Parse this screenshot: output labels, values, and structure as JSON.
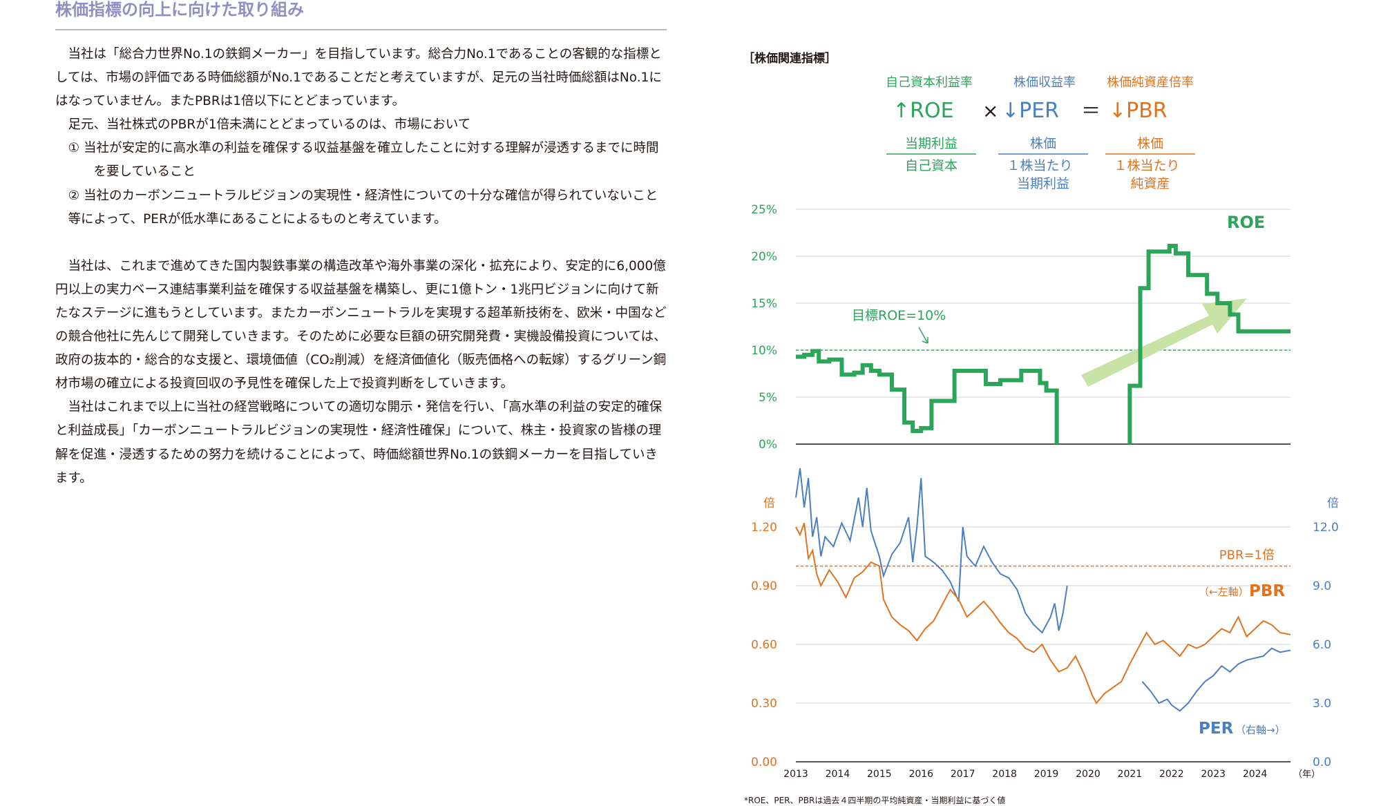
{
  "heading": "株価指標の向上に向けた取り組み",
  "paragraphs": {
    "p1": "当社は「総合力世界No.1の鉄鋼メーカー」を目指しています。総合力No.1であることの客観的な指標としては、市場の評価である時価総額がNo.1であることだと考えていますが、足元の当社時価総額はNo.1にはなっていません。またPBRは1倍以下にとどまっています。",
    "p2": "足元、当社株式のPBRが1倍未満にとどまっているのは、市場において",
    "item1": "① 当社が安定的に高水準の利益を確保する収益基盤を確立したことに対する理解が浸透するまでに時間を要していること",
    "item2": "② 当社のカーボンニュートラルビジョンの実現性・経済性についての十分な確信が得られていないこと",
    "p3": "等によって、PERが低水準にあることによるものと考えています。",
    "p4": "当社は、これまで進めてきた国内製鉄事業の構造改革や海外事業の深化・拡充により、安定的に6,000億円以上の実力ベース連結事業利益を確保する収益基盤を構築し、更に1億トン・1兆円ビジョンに向けて新たなステージに進もうとしています。またカーボンニュートラルを実現する超革新技術を、欧米・中国などの競合他社に先んじて開発していきます。そのために必要な巨額の研究開発費・実機設備投資については、政府の抜本的・総合的な支援と、環境価値（CO₂削減）を経済価値化（販売価格への転嫁）するグリーン鋼材市場の確立による投資回収の予見性を確保した上で投資判断をしていきます。",
    "p5": "当社はこれまで以上に当社の経営戦略についての適切な開示・発信を行い、「高水準の利益の安定的確保と利益成長」「カーボンニュートラルビジョンの実現性・経済性確保」について、株主・投資家の皆様の理解を促進・浸透するための努力を続けることによって、時価総額世界No.1の鉄鋼メーカーを目指していきます。"
  },
  "panel_label": "［株価関連指標］",
  "formula": {
    "roe_title": "自己資本利益率",
    "per_title": "株価収益率",
    "pbr_title": "株価純資産倍率",
    "roe": "↑ROE",
    "times": "×",
    "per": "↓PER",
    "equals": "＝",
    "pbr": "↓PBR",
    "roe_num": "当期利益",
    "roe_den": "自己資本",
    "per_num": "株価",
    "per_den_1": "１株当たり",
    "per_den_2": "当期利益",
    "pbr_num": "株価",
    "pbr_den_1": "１株当たり",
    "pbr_den_2": "純資産"
  },
  "colors": {
    "roe": "#2ca55a",
    "per": "#4a7fc1",
    "pbr": "#e2731e",
    "arrow": "#c9e3a6",
    "grid": "#d0d0d0",
    "axis": "#231815"
  },
  "chart_data": [
    {
      "type": "line",
      "series_name": "ROE",
      "y_ticks": [
        "25%",
        "20%",
        "15%",
        "10%",
        "5%",
        "0%"
      ],
      "ylim": [
        0,
        25
      ],
      "x_range": [
        2013.0,
        2024.85
      ],
      "target_label": "目標ROE=10%",
      "target_value": 10,
      "step_points": [
        [
          2013.0,
          9.3
        ],
        [
          2013.2,
          9.5
        ],
        [
          2013.4,
          9.9
        ],
        [
          2013.55,
          8.8
        ],
        [
          2013.8,
          9.0
        ],
        [
          2014.1,
          7.4
        ],
        [
          2014.4,
          7.6
        ],
        [
          2014.6,
          8.4
        ],
        [
          2014.8,
          7.8
        ],
        [
          2015.0,
          7.4
        ],
        [
          2015.3,
          5.8
        ],
        [
          2015.6,
          2.3
        ],
        [
          2015.8,
          1.4
        ],
        [
          2016.0,
          1.7
        ],
        [
          2016.25,
          4.6
        ],
        [
          2016.8,
          7.8
        ],
        [
          2017.55,
          6.4
        ],
        [
          2017.9,
          6.8
        ],
        [
          2018.4,
          7.8
        ],
        [
          2018.85,
          6.5
        ],
        [
          2019.0,
          5.7
        ],
        [
          2019.25,
          0.0
        ],
        [
          2021.0,
          6.2
        ],
        [
          2021.25,
          16.6
        ],
        [
          2021.45,
          20.5
        ],
        [
          2021.95,
          21.1
        ],
        [
          2022.1,
          20.3
        ],
        [
          2022.4,
          18.0
        ],
        [
          2022.85,
          16.0
        ],
        [
          2023.1,
          15.0
        ],
        [
          2023.4,
          13.8
        ],
        [
          2023.6,
          12.0
        ],
        [
          2024.85,
          12.0
        ]
      ]
    },
    {
      "type": "line",
      "left_axis_label": "倍",
      "right_axis_label": "倍",
      "left_ticks": [
        "1.20",
        "0.90",
        "0.60",
        "0.30",
        "0.00"
      ],
      "right_ticks": [
        "12.0",
        "9.0",
        "6.0",
        "3.0",
        "0.0"
      ],
      "left_ylim": [
        0,
        1.5
      ],
      "right_ylim": [
        0,
        15
      ],
      "x_tick_labels": [
        "2013",
        "2014",
        "2015",
        "2016",
        "2017",
        "2018",
        "2019",
        "2020",
        "2021",
        "2022",
        "2023",
        "2024"
      ],
      "x_unit": "（年）",
      "pbr_ref_label": "PBR=1倍",
      "pbr_ref_value": 1.0,
      "pbr_label": "PBR",
      "pbr_axis_note": "（←左軸）",
      "per_label": "PER",
      "per_axis_note": "（右軸→）",
      "series": [
        {
          "name": "PBR",
          "axis": "left",
          "points": [
            [
              2013.0,
              1.2
            ],
            [
              2013.1,
              1.16
            ],
            [
              2013.2,
              1.22
            ],
            [
              2013.3,
              1.04
            ],
            [
              2013.4,
              1.08
            ],
            [
              2013.5,
              0.96
            ],
            [
              2013.6,
              0.9
            ],
            [
              2013.8,
              0.98
            ],
            [
              2014.0,
              0.92
            ],
            [
              2014.2,
              0.84
            ],
            [
              2014.4,
              0.94
            ],
            [
              2014.6,
              0.97
            ],
            [
              2014.8,
              1.02
            ],
            [
              2015.0,
              1.0
            ],
            [
              2015.1,
              0.83
            ],
            [
              2015.3,
              0.74
            ],
            [
              2015.5,
              0.7
            ],
            [
              2015.7,
              0.67
            ],
            [
              2015.9,
              0.62
            ],
            [
              2016.1,
              0.68
            ],
            [
              2016.3,
              0.72
            ],
            [
              2016.5,
              0.8
            ],
            [
              2016.7,
              0.88
            ],
            [
              2016.9,
              0.83
            ],
            [
              2017.1,
              0.74
            ],
            [
              2017.3,
              0.78
            ],
            [
              2017.5,
              0.82
            ],
            [
              2017.7,
              0.77
            ],
            [
              2017.9,
              0.71
            ],
            [
              2018.1,
              0.66
            ],
            [
              2018.3,
              0.63
            ],
            [
              2018.5,
              0.58
            ],
            [
              2018.7,
              0.56
            ],
            [
              2018.9,
              0.6
            ],
            [
              2019.1,
              0.52
            ],
            [
              2019.3,
              0.46
            ],
            [
              2019.5,
              0.48
            ],
            [
              2019.7,
              0.54
            ],
            [
              2019.9,
              0.45
            ],
            [
              2020.1,
              0.34
            ],
            [
              2020.2,
              0.3
            ],
            [
              2020.4,
              0.35
            ],
            [
              2020.6,
              0.38
            ],
            [
              2020.8,
              0.41
            ],
            [
              2021.0,
              0.5
            ],
            [
              2021.2,
              0.58
            ],
            [
              2021.4,
              0.66
            ],
            [
              2021.6,
              0.6
            ],
            [
              2021.8,
              0.62
            ],
            [
              2022.0,
              0.58
            ],
            [
              2022.2,
              0.54
            ],
            [
              2022.4,
              0.6
            ],
            [
              2022.6,
              0.58
            ],
            [
              2022.8,
              0.6
            ],
            [
              2023.0,
              0.64
            ],
            [
              2023.2,
              0.68
            ],
            [
              2023.4,
              0.66
            ],
            [
              2023.6,
              0.74
            ],
            [
              2023.8,
              0.64
            ],
            [
              2024.0,
              0.68
            ],
            [
              2024.2,
              0.72
            ],
            [
              2024.4,
              0.7
            ],
            [
              2024.6,
              0.66
            ],
            [
              2024.85,
              0.65
            ]
          ]
        },
        {
          "name": "PER",
          "axis": "right",
          "points": [
            [
              2013.0,
              13.5
            ],
            [
              2013.1,
              15.0
            ],
            [
              2013.2,
              13.0
            ],
            [
              2013.3,
              14.5
            ],
            [
              2013.4,
              11.5
            ],
            [
              2013.5,
              12.5
            ],
            [
              2013.6,
              10.5
            ],
            [
              2013.7,
              11.5
            ],
            [
              2013.9,
              11.0
            ],
            [
              2014.1,
              12.2
            ],
            [
              2014.3,
              11.3
            ],
            [
              2014.5,
              13.5
            ],
            [
              2014.6,
              12.0
            ],
            [
              2014.7,
              14.0
            ],
            [
              2014.8,
              11.8
            ],
            [
              2015.0,
              10.5
            ],
            [
              2015.1,
              9.5
            ],
            [
              2015.3,
              10.6
            ],
            [
              2015.5,
              11.2
            ],
            [
              2015.7,
              12.5
            ],
            [
              2015.8,
              10.2
            ],
            [
              2015.9,
              12.0
            ],
            [
              2016.0,
              14.5
            ],
            [
              2016.1,
              10.5
            ],
            [
              2016.3,
              10.2
            ],
            [
              2016.5,
              9.8
            ],
            [
              2016.7,
              9.2
            ],
            [
              2016.9,
              8.2
            ],
            [
              2017.0,
              12.0
            ],
            [
              2017.1,
              10.5
            ],
            [
              2017.3,
              10.0
            ],
            [
              2017.5,
              11.0
            ],
            [
              2017.7,
              10.2
            ],
            [
              2017.9,
              9.6
            ],
            [
              2018.1,
              9.4
            ],
            [
              2018.3,
              8.8
            ],
            [
              2018.5,
              7.6
            ],
            [
              2018.7,
              7.0
            ],
            [
              2018.9,
              6.6
            ],
            [
              2019.1,
              7.4
            ],
            [
              2019.2,
              8.1
            ],
            [
              2019.3,
              6.7
            ],
            [
              2019.4,
              7.6
            ],
            [
              2019.5,
              9.0
            ]
          ],
          "points_after_gap": [
            [
              2021.3,
              4.1
            ],
            [
              2021.5,
              3.6
            ],
            [
              2021.7,
              3.0
            ],
            [
              2021.9,
              3.2
            ],
            [
              2022.0,
              2.9
            ],
            [
              2022.2,
              2.6
            ],
            [
              2022.4,
              3.0
            ],
            [
              2022.6,
              3.6
            ],
            [
              2022.8,
              4.1
            ],
            [
              2023.0,
              4.4
            ],
            [
              2023.2,
              4.9
            ],
            [
              2023.4,
              4.6
            ],
            [
              2023.6,
              5.0
            ],
            [
              2023.8,
              5.2
            ],
            [
              2024.0,
              5.3
            ],
            [
              2024.2,
              5.4
            ],
            [
              2024.4,
              5.8
            ],
            [
              2024.6,
              5.6
            ],
            [
              2024.85,
              5.7
            ]
          ]
        }
      ]
    }
  ],
  "footnote": "*ROE、PER、PBRは過去４四半期の平均純資産・当期利益に基づく値"
}
